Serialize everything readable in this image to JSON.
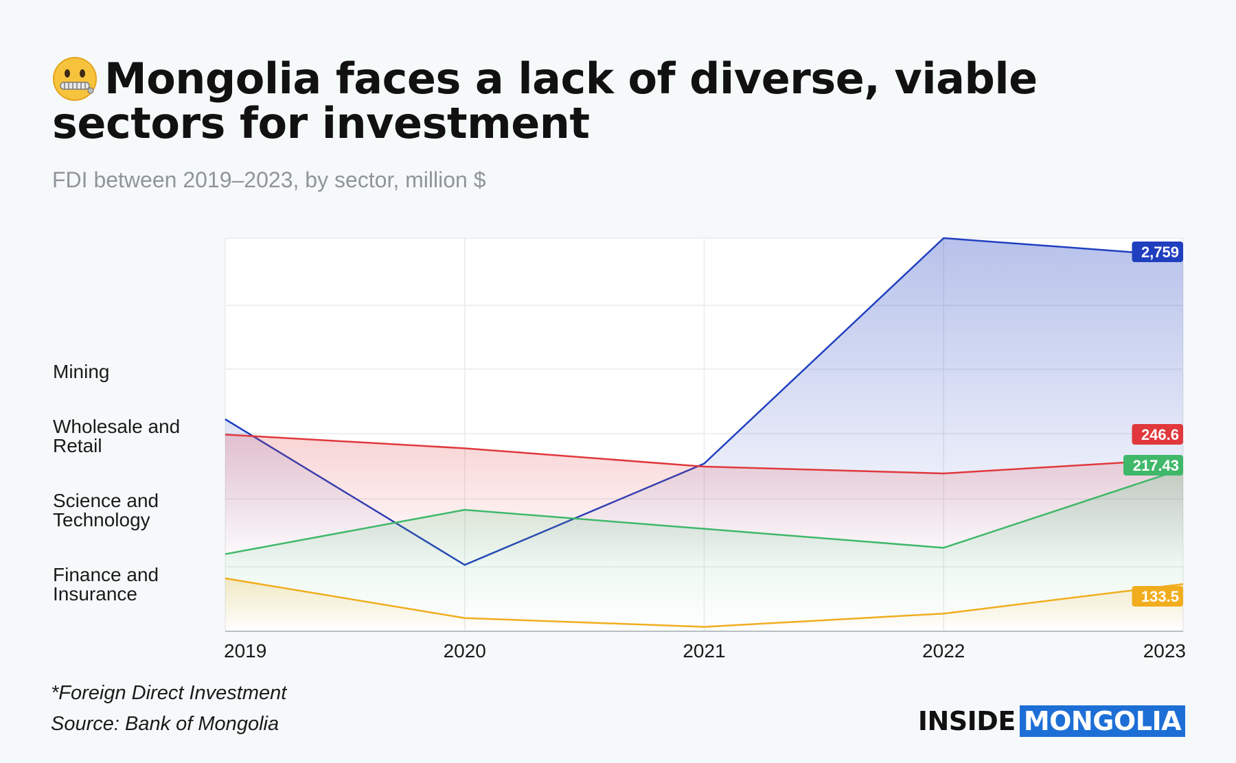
{
  "header": {
    "title_line1": "Mongolia faces a lack of diverse, viable",
    "title_line2": "sectors for investment",
    "emoji_icon": "zipper-mouth-face-icon",
    "subtitle": "FDI between 2019–2023, by sector, million $"
  },
  "chart_data": {
    "type": "area",
    "categories": [
      "2019",
      "2020",
      "2021",
      "2022",
      "2023"
    ],
    "series": [
      {
        "name": "Mining",
        "values": [
          1470,
          320,
          1120,
          2900,
          2759
        ],
        "color": "#1f3fbf",
        "end_label": "2,759"
      },
      {
        "name": "Wholesale and Retail",
        "values": [
          300,
          270,
          230,
          215,
          246.6
        ],
        "color": "#e0383c",
        "end_label": "246.6"
      },
      {
        "name": "Science and Technology",
        "values": [
          150,
          185,
          170,
          155,
          217.43
        ],
        "color": "#3fb86a",
        "end_label": "217.43"
      },
      {
        "name": "Finance and Insurance",
        "values": [
          140,
          95,
          85,
          100,
          133.5
        ],
        "color": "#f1ad1e",
        "end_label": "133.5"
      }
    ],
    "grid": true
  },
  "labels": {
    "mining": "Mining",
    "wholesale_l1": "Wholesale and",
    "wholesale_l2": "Retail",
    "science_l1": "Science and",
    "science_l2": "Technology",
    "finance_l1": "Finance and",
    "finance_l2": "Insurance"
  },
  "footer": {
    "note": "*Foreign Direct Investment",
    "source": "Source: Bank of Mongolia",
    "brand_a": "INSIDE",
    "brand_b": "MONGOLIA"
  }
}
